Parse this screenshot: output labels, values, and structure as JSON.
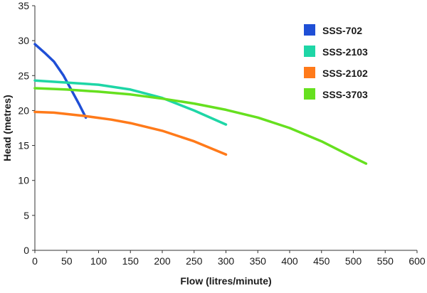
{
  "chart_data": {
    "type": "line",
    "title": "",
    "xlabel": "Flow (litres/minute)",
    "ylabel": "Head (metres)",
    "xlim": [
      0,
      600
    ],
    "ylim": [
      0,
      35
    ],
    "x_ticks": [
      0,
      50,
      100,
      150,
      200,
      250,
      300,
      350,
      400,
      450,
      500,
      550,
      600
    ],
    "y_ticks": [
      0,
      5,
      10,
      15,
      20,
      25,
      30,
      35
    ],
    "grid": false,
    "legend_position": "top-right",
    "series": [
      {
        "name": "SSS-702",
        "color": "#1f4fd6",
        "points": [
          [
            0,
            29.5
          ],
          [
            15,
            28.3
          ],
          [
            30,
            27.0
          ],
          [
            45,
            25.0
          ],
          [
            60,
            22.5
          ],
          [
            70,
            20.8
          ],
          [
            80,
            19.0
          ]
        ]
      },
      {
        "name": "SSS-2103",
        "color": "#1ed6a6",
        "points": [
          [
            0,
            24.3
          ],
          [
            50,
            24.0
          ],
          [
            100,
            23.7
          ],
          [
            150,
            23.0
          ],
          [
            200,
            21.8
          ],
          [
            250,
            20.0
          ],
          [
            300,
            18.0
          ]
        ]
      },
      {
        "name": "SSS-2102",
        "color": "#ff7a1a",
        "points": [
          [
            0,
            19.8
          ],
          [
            30,
            19.7
          ],
          [
            80,
            19.2
          ],
          [
            120,
            18.7
          ],
          [
            150,
            18.2
          ],
          [
            200,
            17.1
          ],
          [
            250,
            15.6
          ],
          [
            300,
            13.7
          ]
        ]
      },
      {
        "name": "SSS-3703",
        "color": "#66e01f",
        "points": [
          [
            0,
            23.2
          ],
          [
            50,
            23.0
          ],
          [
            100,
            22.7
          ],
          [
            150,
            22.3
          ],
          [
            200,
            21.7
          ],
          [
            250,
            21.0
          ],
          [
            300,
            20.1
          ],
          [
            350,
            19.0
          ],
          [
            400,
            17.5
          ],
          [
            450,
            15.6
          ],
          [
            500,
            13.3
          ],
          [
            520,
            12.4
          ]
        ]
      }
    ]
  }
}
